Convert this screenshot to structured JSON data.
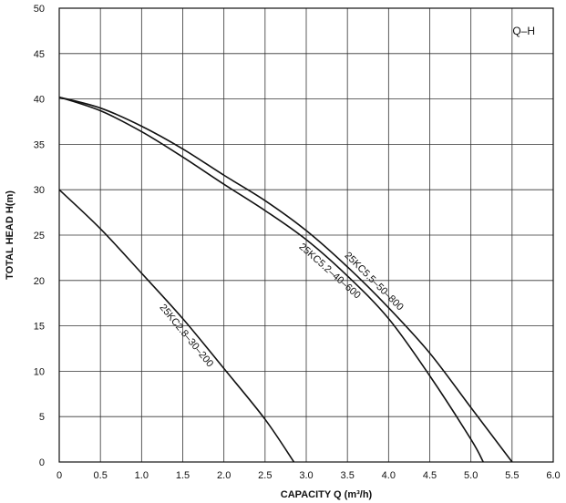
{
  "chart_data": {
    "type": "line",
    "tag": "Q–H",
    "xlabel": "CAPACITY  Q (m³/h)",
    "ylabel": "TOTAL HEAD  H(m)",
    "xlim": [
      0,
      6
    ],
    "ylim": [
      0,
      50
    ],
    "x_ticks": [
      "0",
      "0.5",
      "1.0",
      "1.5",
      "2.0",
      "2.5",
      "3.0",
      "3.5",
      "4.0",
      "4.5",
      "5.0",
      "5.5",
      "6.0"
    ],
    "y_ticks": [
      "0",
      "5",
      "10",
      "15",
      "20",
      "25",
      "30",
      "35",
      "40",
      "45",
      "50"
    ],
    "grid": true,
    "series": [
      {
        "name": "25KC2.8–30–200",
        "x": [
          0,
          0.5,
          1.0,
          1.5,
          2.0,
          2.5,
          2.85
        ],
        "y": [
          30,
          25.7,
          20.8,
          15.8,
          10.3,
          4.7,
          0
        ]
      },
      {
        "name": "25KC5.2–40–600",
        "x": [
          0,
          0.5,
          1.0,
          1.5,
          2.0,
          2.5,
          3.0,
          3.5,
          4.0,
          4.5,
          5.0,
          5.15
        ],
        "y": [
          40.2,
          38.7,
          36.4,
          33.6,
          30.6,
          27.7,
          24.5,
          20.5,
          15.8,
          9.5,
          2.5,
          0
        ]
      },
      {
        "name": "25KC5.5–50–800",
        "x": [
          0,
          0.5,
          1.0,
          1.5,
          2.0,
          2.5,
          3.0,
          3.5,
          4.0,
          4.5,
          5.0,
          5.5
        ],
        "y": [
          40.2,
          39.0,
          37.0,
          34.5,
          31.6,
          28.8,
          25.5,
          21.5,
          17.0,
          12.0,
          6.0,
          0
        ]
      }
    ]
  }
}
